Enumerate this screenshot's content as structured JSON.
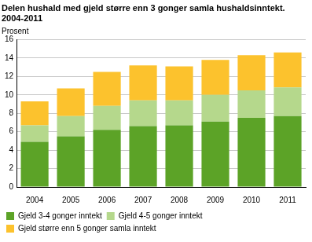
{
  "chart_data": {
    "type": "bar",
    "title": [
      "Delen hushald med gjeld større enn 3 gonger samla hushaldsinntekt.",
      "2004-2011"
    ],
    "y_label": "Prosent",
    "categories": [
      "2004",
      "2005",
      "2006",
      "2007",
      "2008",
      "2009",
      "2010",
      "2011"
    ],
    "series": [
      {
        "name": "Gjeld 3-4 gonger inntekt",
        "color": "#5ca327",
        "values": [
          4.9,
          5.5,
          6.2,
          6.6,
          6.7,
          7.1,
          7.5,
          7.7
        ]
      },
      {
        "name": "Gjeld 4-5 gonger inntekt",
        "color": "#b5d88c",
        "values": [
          1.8,
          2.2,
          2.6,
          2.8,
          2.7,
          2.9,
          3.0,
          3.1
        ]
      },
      {
        "name": "Gjeld større enn 5 gonger samla inntekt",
        "color": "#fcc22d",
        "values": [
          2.6,
          3.0,
          3.7,
          3.8,
          3.7,
          3.8,
          3.8,
          3.8
        ]
      }
    ],
    "ylim": [
      0,
      16
    ],
    "yticks": [
      0,
      2,
      4,
      6,
      8,
      10,
      12,
      14,
      16
    ],
    "stacked": true,
    "grid": true,
    "legend": "bottom"
  }
}
